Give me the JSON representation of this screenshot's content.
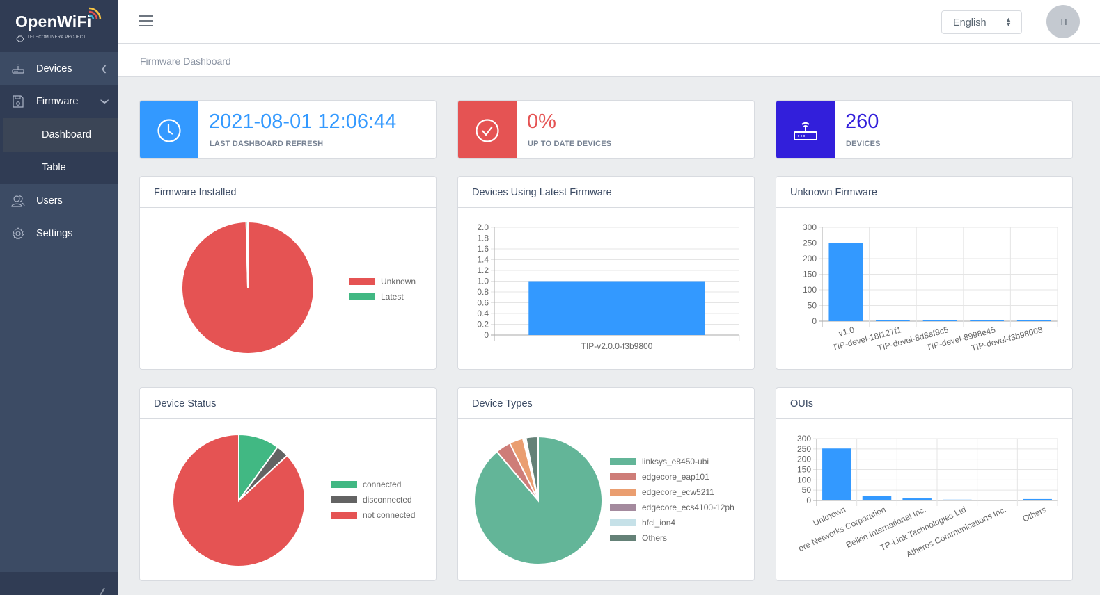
{
  "brand": {
    "name": "OpenWiFi",
    "tagline": "TELECOM INFRA PROJECT"
  },
  "sidebar": {
    "items": [
      {
        "label": "Devices",
        "icon": "router-icon"
      },
      {
        "label": "Firmware",
        "icon": "save-icon",
        "children": [
          {
            "label": "Dashboard",
            "active": true
          },
          {
            "label": "Table"
          }
        ]
      },
      {
        "label": "Users",
        "icon": "people-icon"
      },
      {
        "label": "Settings",
        "icon": "gear-icon"
      }
    ]
  },
  "header": {
    "language": "English",
    "avatar_initials": "TI"
  },
  "breadcrumb": "Firmware Dashboard",
  "widgets": [
    {
      "value": "2021-08-01 12:06:44",
      "label": "LAST DASHBOARD REFRESH",
      "color": "#3399ff",
      "icon": "clock-icon"
    },
    {
      "value": "0%",
      "label": "UP TO DATE DEVICES",
      "color": "#e55353",
      "icon": "check-circle-icon"
    },
    {
      "value": "260",
      "label": "DEVICES",
      "color": "#321fdb",
      "icon": "router-icon"
    }
  ],
  "chart_data": [
    {
      "type": "pie",
      "title": "Firmware Installed",
      "labels": [
        "Unknown",
        "Latest"
      ],
      "values": [
        259,
        1
      ],
      "colors": [
        "#e55353",
        "#41b883"
      ],
      "legend": "right"
    },
    {
      "type": "bar",
      "title": "Devices Using Latest Firmware",
      "categories": [
        "TIP-v2.0.0-f3b9800"
      ],
      "values": [
        1
      ],
      "ylim": [
        0,
        2.0
      ],
      "yticks": [
        "2.0",
        "1.8",
        "1.6",
        "1.4",
        "1.2",
        "1.0",
        "0.8",
        "0.6",
        "0.4",
        "0.2",
        "0"
      ],
      "color": "#3399ff"
    },
    {
      "type": "bar",
      "title": "Unknown Firmware",
      "categories": [
        "v1.0",
        "TIP-devel-18f127f1",
        "TIP-devel-8d8af8c5",
        "TIP-devel-8998e45",
        "TIP-devel-f3b98008"
      ],
      "values": [
        251,
        2,
        2,
        1,
        1
      ],
      "ylim": [
        0,
        300
      ],
      "yticks": [
        "300",
        "250",
        "200",
        "150",
        "100",
        "50",
        "0"
      ],
      "color": "#3399ff"
    },
    {
      "type": "pie",
      "title": "Device Status",
      "labels": [
        "connected",
        "disconnected",
        "not connected"
      ],
      "values": [
        26,
        8,
        226
      ],
      "colors": [
        "#41b883",
        "#636363",
        "#e55353"
      ],
      "legend": "right"
    },
    {
      "type": "pie",
      "title": "Device Types",
      "labels": [
        "linksys_e8450-ubi",
        "edgecore_eap101",
        "edgecore_ecw5211",
        "edgecore_ecs4100-12ph",
        "hfcl_ion4",
        "Others"
      ],
      "values": [
        231,
        10,
        9,
        1,
        1,
        8
      ],
      "colors": [
        "#63b598",
        "#ce7d78",
        "#ea9e70",
        "#a48a9e",
        "#c6e1e8",
        "#648177"
      ],
      "legend": "right"
    },
    {
      "type": "bar",
      "title": "OUIs",
      "categories": [
        "Unknown",
        "ore Networks Corporation",
        "Belkin International Inc.",
        "TP-Link Technologies Ltd",
        "Atheros Communications Inc.",
        "Others"
      ],
      "values": [
        252,
        22,
        10,
        4,
        2,
        7
      ],
      "ylim": [
        0,
        300
      ],
      "yticks": [
        "300",
        "250",
        "200",
        "150",
        "100",
        "50",
        "0"
      ],
      "color": "#3399ff"
    }
  ]
}
